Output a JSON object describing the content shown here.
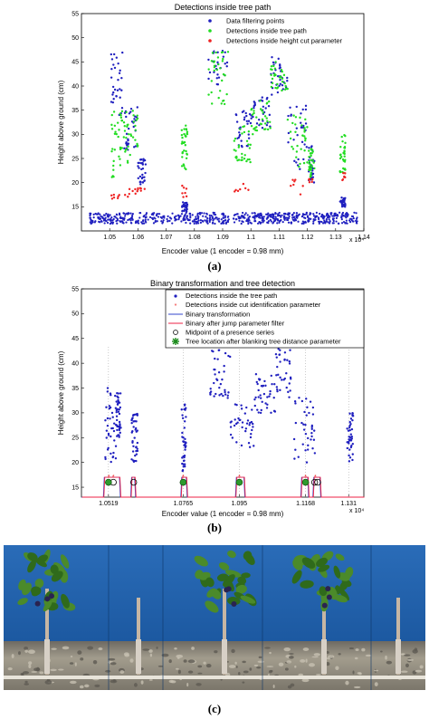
{
  "panel_labels": [
    "(a)",
    "(b)",
    "(c)"
  ],
  "chart_data": [
    {
      "type": "scatter",
      "title": "Detections inside tree path",
      "xlabel": "Encoder value (1 encoder = 0.98 mm)",
      "ylabel": "Height above ground (cm)",
      "x_multiplier_label": "x 10⁴",
      "xlim": [
        1.04,
        1.14
      ],
      "ylim": [
        10,
        55
      ],
      "x_ticks": [
        "1.05",
        "1.06",
        "1.07",
        "1.08",
        "1.09",
        "1.1",
        "1.11",
        "1.12",
        "1.13",
        "1.14"
      ],
      "y_ticks": [
        "15",
        "20",
        "25",
        "30",
        "35",
        "40",
        "45",
        "50",
        "55"
      ],
      "legend_position": "top-right",
      "colors": {
        "filtering": "#1f1fbf",
        "tree_path": "#22dd22",
        "height_cut": "#ee2222"
      },
      "series": [
        {
          "name": "Data filtering points",
          "color": "#1f1fbf"
        },
        {
          "name": "Detections inside tree path",
          "color": "#22dd22"
        },
        {
          "name": "Detections inside height cut parameter",
          "color": "#ee2222"
        }
      ],
      "ground_band": {
        "x_range": [
          1.043,
          1.138
        ],
        "y_range": [
          11.5,
          13.8
        ]
      },
      "clusters": [
        {
          "x_range": [
            1.0505,
            1.0545
          ],
          "blue_y": [
            34,
            47
          ],
          "green_y": [
            21,
            35
          ],
          "red_y": [
            16.5,
            18
          ]
        },
        {
          "x_range": [
            1.055,
            1.06
          ],
          "blue_y": [
            26,
            36
          ],
          "green_y": [
            24,
            35
          ],
          "red_y": [
            17,
            19
          ]
        },
        {
          "x_range": [
            1.0595,
            1.063
          ],
          "blue_y": [
            19,
            25
          ],
          "green_y": [],
          "red_y": [
            18,
            19
          ]
        },
        {
          "x_range": [
            1.0755,
            1.0775
          ],
          "blue_y": [
            14,
            16
          ],
          "green_y": [
            22,
            32
          ],
          "red_y": [
            17,
            19.5
          ]
        },
        {
          "x_range": [
            1.085,
            1.092
          ],
          "blue_y": [
            40,
            49
          ],
          "green_y": [
            36,
            48
          ],
          "red_y": []
        },
        {
          "x_range": [
            1.094,
            1.1
          ],
          "blue_y": [
            27,
            35
          ],
          "green_y": [
            24,
            32
          ],
          "red_y": [
            18,
            20
          ]
        },
        {
          "x_range": [
            1.1,
            1.107
          ],
          "blue_y": [
            31,
            38
          ],
          "green_y": [
            30,
            37
          ],
          "red_y": []
        },
        {
          "x_range": [
            1.107,
            1.113
          ],
          "blue_y": [
            38,
            46
          ],
          "green_y": [
            38,
            45
          ],
          "red_y": []
        },
        {
          "x_range": [
            1.113,
            1.12
          ],
          "blue_y": [
            22,
            36
          ],
          "green_y": [
            23,
            34
          ],
          "red_y": [
            17,
            21
          ]
        },
        {
          "x_range": [
            1.1205,
            1.1225
          ],
          "blue_y": [
            20,
            28
          ],
          "green_y": [
            21,
            27
          ],
          "red_y": [
            20,
            21
          ]
        },
        {
          "x_range": [
            1.1315,
            1.1335
          ],
          "blue_y": [
            15,
            17
          ],
          "green_y": [
            22,
            30
          ],
          "red_y": [
            20.5,
            22
          ]
        }
      ]
    },
    {
      "type": "scatter",
      "title": "Binary transformation and tree detection",
      "xlabel": "Encoder value (1 encoder = 0.98 mm)",
      "ylabel": "Height above ground (cm)",
      "x_multiplier_label": "x 10⁴",
      "xlim": [
        1.043,
        1.136
      ],
      "ylim": [
        13,
        55
      ],
      "x_ticks": [
        "1.0519",
        "1.0765",
        "1.095",
        "1.1168",
        "1.131"
      ],
      "x_tick_values": [
        1.0519,
        1.0765,
        1.095,
        1.1168,
        1.131
      ],
      "y_ticks": [
        "15",
        "20",
        "25",
        "30",
        "35",
        "40",
        "45",
        "50",
        "55"
      ],
      "legend_position": "top-right",
      "colors": {
        "detections": "#1f1fbf",
        "cut": "#ee2222",
        "binary": "#3344cc",
        "binary_filtered": "#ee2244",
        "midpoint": "#000000",
        "tree": "#1a8a1a"
      },
      "series": [
        {
          "name": "Detections inside the tree path",
          "color": "#1f1fbf"
        },
        {
          "name": "Detections inside cut identification parameter",
          "color": "#ee2222"
        },
        {
          "name": "Binary transformation",
          "color": "#3344cc"
        },
        {
          "name": "Binary after jump parameter filter",
          "color": "#ee2244"
        },
        {
          "name": "Midpoint of a presence series",
          "color": "#000000"
        },
        {
          "name": "Tree location after blanking tree distance parameter",
          "color": "#1a8a1a"
        }
      ],
      "clusters": [
        {
          "x_range": [
            1.0505,
            1.0545
          ],
          "y": [
            20,
            36
          ]
        },
        {
          "x_range": [
            1.0545,
            1.056
          ],
          "y": [
            25,
            34
          ]
        },
        {
          "x_range": [
            1.0595,
            1.0615
          ],
          "y": [
            20,
            30
          ]
        },
        {
          "x_range": [
            1.076,
            1.0775
          ],
          "y": [
            18,
            33
          ]
        },
        {
          "x_range": [
            1.085,
            1.092
          ],
          "y": [
            33,
            44
          ]
        },
        {
          "x_range": [
            1.092,
            1.1
          ],
          "y": [
            23,
            32
          ]
        },
        {
          "x_range": [
            1.1,
            1.107
          ],
          "y": [
            30,
            38
          ]
        },
        {
          "x_range": [
            1.107,
            1.112
          ],
          "y": [
            33,
            44
          ]
        },
        {
          "x_range": [
            1.113,
            1.12
          ],
          "y": [
            20,
            34
          ]
        },
        {
          "x_range": [
            1.1305,
            1.1325
          ],
          "y": [
            20,
            30
          ]
        }
      ],
      "binary_baseline": 13,
      "binary_high": 17,
      "binary_segments": [
        [
          1.0505,
          1.0555
        ],
        [
          1.0595,
          1.0605
        ],
        [
          1.076,
          1.0775
        ],
        [
          1.094,
          1.0965
        ],
        [
          1.1155,
          1.1175
        ],
        [
          1.1195,
          1.1215
        ]
      ],
      "midpoints": [
        {
          "x": 1.0519,
          "y": 16
        },
        {
          "x": 1.0535,
          "y": 16
        },
        {
          "x": 1.0602,
          "y": 16
        },
        {
          "x": 1.0765,
          "y": 16
        },
        {
          "x": 1.095,
          "y": 16
        },
        {
          "x": 1.1168,
          "y": 16
        },
        {
          "x": 1.1198,
          "y": 16
        },
        {
          "x": 1.1208,
          "y": 16
        }
      ],
      "trees": [
        {
          "x": 1.0519,
          "y": 16
        },
        {
          "x": 1.0765,
          "y": 16
        },
        {
          "x": 1.095,
          "y": 16
        },
        {
          "x": 1.1168,
          "y": 16
        }
      ],
      "red_marks": [
        {
          "x": 1.052,
          "y": 17
        },
        {
          "x": 1.0535,
          "y": 17
        },
        {
          "x": 1.0765,
          "y": 17
        },
        {
          "x": 1.095,
          "y": 17
        },
        {
          "x": 1.1168,
          "y": 17
        },
        {
          "x": 1.12,
          "y": 17
        }
      ]
    }
  ],
  "photo": {
    "colors": {
      "wall": "#1b5fa8",
      "wall_dark": "#0f3f7e",
      "soil": "#8d8a80",
      "stones": "#b9b3a4",
      "trunk": "#b8a99a",
      "leaf": "#3f7a22"
    }
  }
}
